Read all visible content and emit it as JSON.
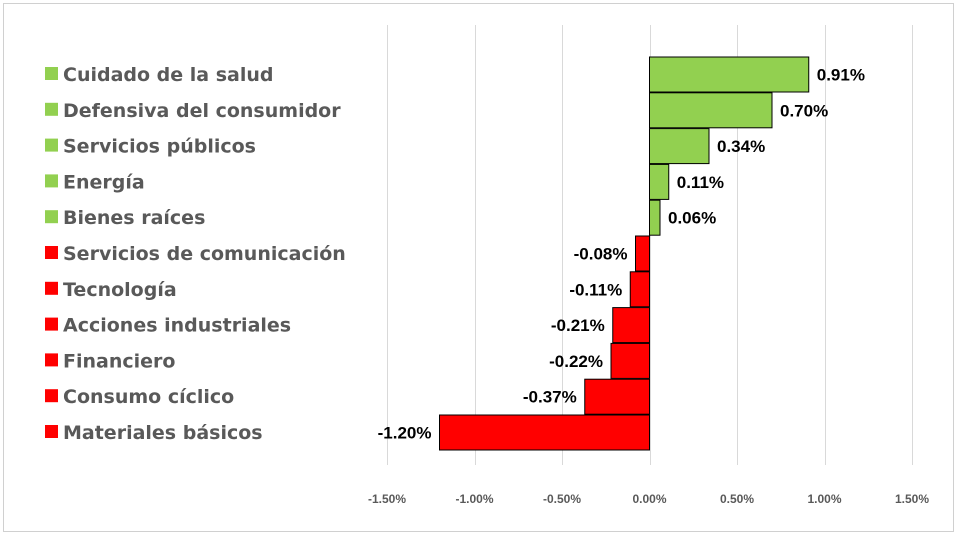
{
  "chart_data": {
    "type": "bar",
    "orientation": "horizontal",
    "title": "",
    "xlabel": "",
    "ylabel": "",
    "xlim": [
      -1.5,
      1.5
    ],
    "x_ticks": [
      -1.5,
      -1.0,
      -0.5,
      0.0,
      0.5,
      1.0,
      1.5
    ],
    "x_tick_labels": [
      "-1.50%",
      "-1.00%",
      "-0.50%",
      "0.00%",
      "0.50%",
      "1.00%",
      "1.50%"
    ],
    "grid": true,
    "legend_position": "left",
    "positive_color": "#92d050",
    "negative_color": "#ff0000",
    "categories": [
      "Cuidado de la salud",
      "Defensiva del consumidor",
      "Servicios públicos",
      "Energía",
      "Bienes raíces",
      "Servicios de comunicación",
      "Tecnología",
      "Acciones industriales",
      "Financiero",
      "Consumo cíclico",
      "Materiales básicos"
    ],
    "values": [
      0.91,
      0.7,
      0.34,
      0.11,
      0.06,
      -0.08,
      -0.11,
      -0.21,
      -0.22,
      -0.37,
      -1.2
    ],
    "value_labels": [
      "0.91%",
      "0.70%",
      "0.34%",
      "0.11%",
      "0.06%",
      "-0.08%",
      "-0.11%",
      "-0.21%",
      "-0.22%",
      "-0.37%",
      "-1.20%"
    ]
  }
}
